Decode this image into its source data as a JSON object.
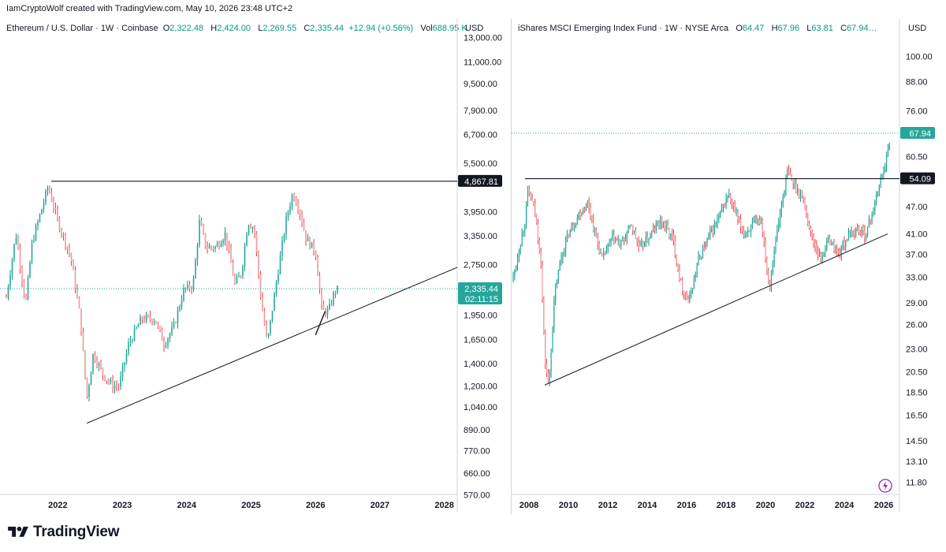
{
  "header": {
    "attribution": "IamCryptoWolf created with TradingView.com, May 10, 2026 23:48 UTC+2"
  },
  "footer": {
    "brand": "TradingView"
  },
  "colors": {
    "up": "#089981",
    "down": "#f23645",
    "up_body": "#26a69a",
    "down_body": "#ef9a9a",
    "line": "#131722",
    "teal": "#26a69a"
  },
  "left": {
    "title": "Ethereum / U.S. Dollar · 1W · Coinbase",
    "ohlc": {
      "O": "2,322.48",
      "H": "2,424.00",
      "L": "2,269.55",
      "C": "2,335.44",
      "chg": "+12.94 (+0.56%)",
      "Vol": "688.95 K"
    },
    "currency": "USD",
    "countdown": "02:11:15"
  },
  "right": {
    "title": "iShares MSCI Emerging Index Fund · 1W · NYSE Arca",
    "ohlc": {
      "O": "64.47",
      "H": "67.96",
      "L": "63.81",
      "C": "67.94…"
    },
    "currency": "USD"
  },
  "chart_data": [
    {
      "type": "line",
      "title": "Ethereum / U.S. Dollar · 1W · Coinbase",
      "scale": "log",
      "ylim": [
        550,
        14000
      ],
      "xlim": [
        2021.2,
        2028.2
      ],
      "y_ticks": [
        "13,000.00",
        "11,000.00",
        "9,500.00",
        "7,900.00",
        "6,700.00",
        "5,500.00",
        "3,950.00",
        "3,350.00",
        "2,750.00",
        "1,950.00",
        "1,650.00",
        "1,400.00",
        "1,200.00",
        "1,040.00",
        "890.00",
        "770.00",
        "660.00",
        "570.00"
      ],
      "x_ticks": [
        "2022",
        "2023",
        "2024",
        "2025",
        "2026",
        "2027",
        "2028"
      ],
      "price_labels": [
        {
          "value": "4,867.81",
          "style": "black"
        },
        {
          "value": "2,335.44",
          "style": "teal"
        }
      ],
      "series": [
        {
          "x": [
            2021.2,
            2021.35,
            2021.5,
            2021.6,
            2021.85,
            2022.0,
            2022.2,
            2022.35,
            2022.45,
            2022.55,
            2022.7,
            2022.85,
            2022.95,
            2023.1,
            2023.3,
            2023.5,
            2023.65,
            2023.8,
            2023.95,
            2024.1,
            2024.2,
            2024.3,
            2024.45,
            2024.6,
            2024.75,
            2024.85,
            2024.95,
            2025.05,
            2025.15,
            2025.25,
            2025.4,
            2025.55,
            2025.65,
            2025.75,
            2025.85,
            2026.0,
            2026.1,
            2026.2,
            2026.3,
            2026.36
          ],
          "values": [
            2200,
            3400,
            2100,
            3200,
            4700,
            3700,
            2900,
            1900,
            1100,
            1500,
            1300,
            1200,
            1200,
            1600,
            1900,
            1900,
            1600,
            1800,
            2300,
            2400,
            3700,
            3100,
            3100,
            3400,
            2400,
            2600,
            3700,
            3500,
            2200,
            1600,
            2500,
            3800,
            4500,
            4000,
            3300,
            3000,
            2000,
            2000,
            2300,
            2335.44
          ]
        }
      ],
      "annotations": [
        {
          "type": "horizontal-line",
          "y": 4867.81,
          "x_start": 2021.9
        },
        {
          "type": "trendline",
          "points": [
            [
              2022.45,
              930
            ],
            [
              2028.3,
              2700
            ]
          ]
        },
        {
          "type": "short-trendline",
          "points": [
            [
              2026.0,
              1700
            ],
            [
              2026.15,
              2000
            ]
          ]
        }
      ]
    },
    {
      "type": "line",
      "title": "iShares MSCI Emerging Index Fund · 1W · NYSE Arca",
      "scale": "log",
      "ylim": [
        11,
        115
      ],
      "xlim": [
        2007.2,
        2026.8
      ],
      "y_ticks": [
        "100.00",
        "88.00",
        "76.00",
        "60.50",
        "47.00",
        "41.00",
        "37.00",
        "33.00",
        "29.00",
        "26.00",
        "23.00",
        "20.50",
        "18.50",
        "16.50",
        "14.50",
        "13.10",
        "11.80"
      ],
      "x_ticks": [
        "2008",
        "2010",
        "2012",
        "2014",
        "2016",
        "2018",
        "2020",
        "2022",
        "2024",
        "2026"
      ],
      "price_labels": [
        {
          "value": "67.94",
          "style": "teal"
        },
        {
          "value": "54.09",
          "style": "black"
        }
      ],
      "series": [
        {
          "x": [
            2007.2,
            2007.5,
            2007.8,
            2007.95,
            2008.3,
            2008.6,
            2008.8,
            2009.0,
            2009.3,
            2009.6,
            2010.0,
            2010.5,
            2011.0,
            2011.3,
            2011.7,
            2012.2,
            2012.7,
            2013.2,
            2013.6,
            2014.2,
            2014.7,
            2015.3,
            2015.7,
            2016.1,
            2016.6,
            2017.2,
            2017.7,
            2018.1,
            2018.5,
            2018.9,
            2019.4,
            2019.8,
            2020.2,
            2020.4,
            2020.8,
            2021.1,
            2021.5,
            2021.9,
            2022.3,
            2022.8,
            2023.2,
            2023.7,
            2024.1,
            2024.6,
            2025.1,
            2025.5,
            2025.9,
            2026.25,
            2026.35
          ],
          "values": [
            33,
            38,
            44,
            51,
            46,
            36,
            22,
            19,
            30,
            36,
            41,
            45,
            48,
            42,
            36,
            40,
            39,
            43,
            38,
            41,
            44,
            40,
            32,
            29,
            36,
            41,
            45,
            50,
            45,
            41,
            43,
            44,
            31,
            37,
            47,
            56,
            52,
            49,
            41,
            36,
            40,
            37,
            40,
            42,
            41,
            47,
            55,
            63,
            67.94
          ]
        }
      ],
      "annotations": [
        {
          "type": "horizontal-line",
          "y": 54.09,
          "x_start": 2007.8
        },
        {
          "type": "trendline",
          "points": [
            [
              2008.8,
              19.2
            ],
            [
              2026.2,
              41
            ]
          ]
        }
      ]
    }
  ]
}
